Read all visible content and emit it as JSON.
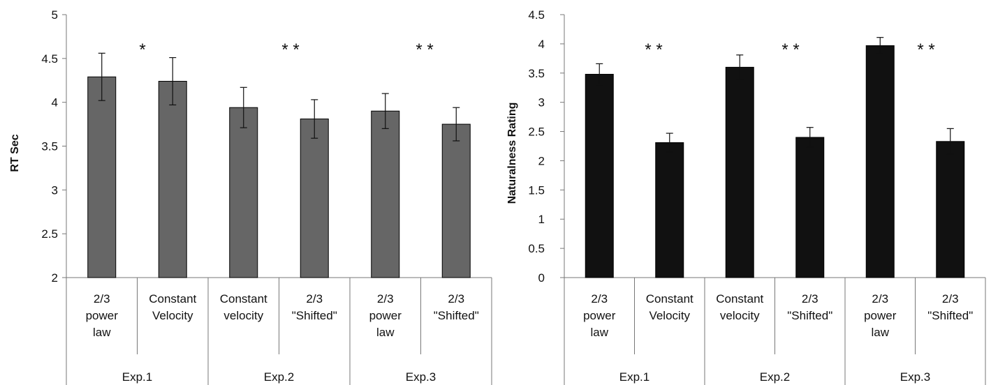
{
  "chart_data": [
    {
      "type": "bar",
      "title": "",
      "xlabel": "",
      "ylabel": "RT Sec",
      "ylim": [
        2,
        5
      ],
      "yticks": [
        2,
        2.5,
        3,
        3.5,
        4,
        4.5,
        5
      ],
      "ytick_labels": [
        "2",
        "2.5",
        "3",
        "3.5",
        "4",
        "4.5",
        "5"
      ],
      "bar_color": "#666666",
      "categories": [
        [
          "2/3",
          "power",
          "law"
        ],
        [
          "Constant",
          "Velocity"
        ],
        [
          "Constant",
          "velocity"
        ],
        [
          "2/3",
          "\"Shifted\""
        ],
        [
          "2/3",
          "power",
          "law"
        ],
        [
          "2/3",
          "\"Shifted\""
        ]
      ],
      "groups": [
        "Exp.1",
        "Exp.2",
        "Exp.3"
      ],
      "values": [
        4.29,
        4.24,
        3.94,
        3.81,
        3.9,
        3.75
      ],
      "errors": [
        0.27,
        0.27,
        0.23,
        0.22,
        0.2,
        0.19
      ],
      "significance": [
        "*",
        "**",
        "**"
      ]
    },
    {
      "type": "bar",
      "title": "",
      "xlabel": "",
      "ylabel": "Naturalness Rating",
      "ylim": [
        0,
        4.5
      ],
      "yticks": [
        0,
        0.5,
        1,
        1.5,
        2,
        2.5,
        3,
        3.5,
        4,
        4.5
      ],
      "ytick_labels": [
        "0",
        "0.5",
        "1",
        "1.5",
        "2",
        "2.5",
        "3",
        "3.5",
        "4",
        "4.5"
      ],
      "bar_color": "#111111",
      "categories": [
        [
          "2/3",
          "power",
          "law"
        ],
        [
          "Constant",
          "Velocity"
        ],
        [
          "Constant",
          "velocity"
        ],
        [
          "2/3",
          "\"Shifted\""
        ],
        [
          "2/3",
          "power",
          "law"
        ],
        [
          "2/3",
          "\"Shifted\""
        ]
      ],
      "groups": [
        "Exp.1",
        "Exp.2",
        "Exp.3"
      ],
      "values": [
        3.48,
        2.31,
        3.6,
        2.4,
        3.97,
        2.33
      ],
      "errors": [
        0.18,
        0.16,
        0.21,
        0.17,
        0.14,
        0.22
      ],
      "significance": [
        "**",
        "**",
        "**"
      ]
    }
  ]
}
